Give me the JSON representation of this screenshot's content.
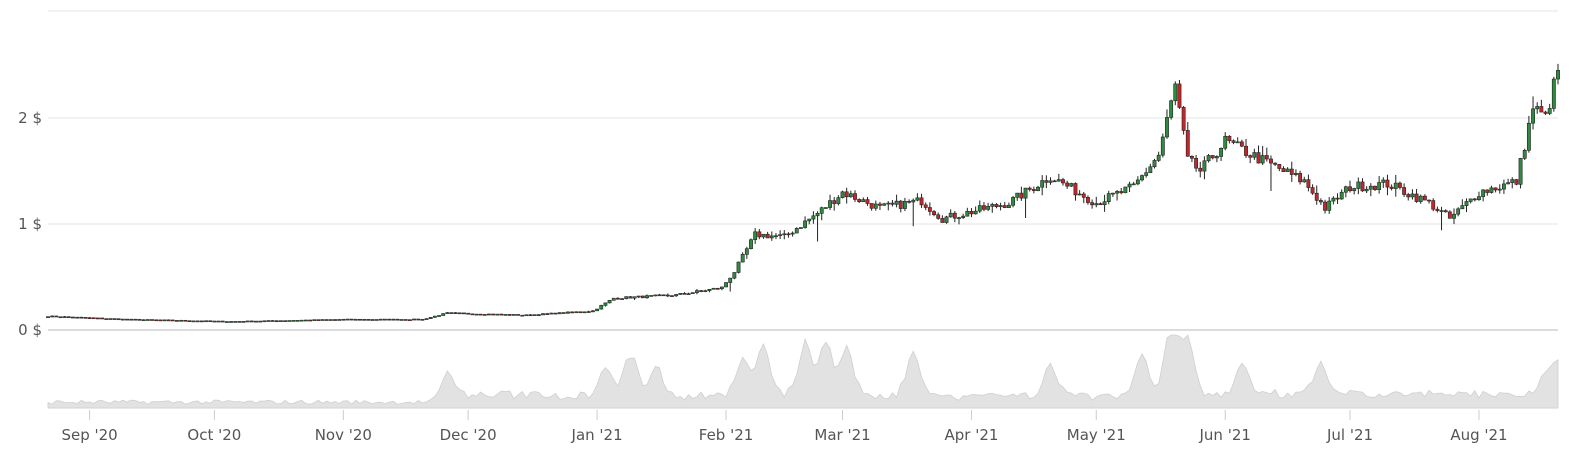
{
  "chart_data": {
    "type": "candlestick",
    "price_axis": {
      "unit": "$",
      "ticks": [
        {
          "value": 0,
          "label": "0 $"
        },
        {
          "value": 1,
          "label": "1 $"
        },
        {
          "value": 2,
          "label": "2 $"
        }
      ],
      "range": [
        0,
        3
      ]
    },
    "x_axis": {
      "ticks": [
        "Sep '20",
        "Oct '20",
        "Nov '20",
        "Dec '20",
        "Jan '21",
        "Feb '21",
        "Mar '21",
        "Apr '21",
        "May '21",
        "Jun '21",
        "Jul '21",
        "Aug '21"
      ],
      "range": [
        "2020-08-22",
        "2021-08-20"
      ]
    },
    "grid": true,
    "colors": {
      "up": "#2e8b3f",
      "down": "#c0282e",
      "wick": "#222222",
      "volume": "#e2e2e2",
      "grid": "#e6e6e6"
    },
    "price_keypoints": [
      [
        "2020-08-22",
        0.13
      ],
      [
        "2020-09-10",
        0.1
      ],
      [
        "2020-10-05",
        0.08
      ],
      [
        "2020-11-01",
        0.1
      ],
      [
        "2020-11-20",
        0.1
      ],
      [
        "2020-11-26",
        0.16
      ],
      [
        "2020-12-15",
        0.14
      ],
      [
        "2020-12-31",
        0.18
      ],
      [
        "2021-01-05",
        0.3
      ],
      [
        "2021-01-20",
        0.33
      ],
      [
        "2021-01-31",
        0.4
      ],
      [
        "2021-02-03",
        0.55
      ],
      [
        "2021-02-08",
        0.9
      ],
      [
        "2021-02-15",
        0.88
      ],
      [
        "2021-02-23",
        1.1
      ],
      [
        "2021-03-01",
        1.3
      ],
      [
        "2021-03-10",
        1.15
      ],
      [
        "2021-03-20",
        1.22
      ],
      [
        "2021-03-25",
        1.05
      ],
      [
        "2021-04-10",
        1.2
      ],
      [
        "2021-04-20",
        1.45
      ],
      [
        "2021-05-01",
        1.2
      ],
      [
        "2021-05-10",
        1.35
      ],
      [
        "2021-05-16",
        1.65
      ],
      [
        "2021-05-20",
        2.3
      ],
      [
        "2021-05-23",
        1.6
      ],
      [
        "2021-05-26",
        1.5
      ],
      [
        "2021-06-01",
        1.78
      ],
      [
        "2021-06-10",
        1.6
      ],
      [
        "2021-06-20",
        1.4
      ],
      [
        "2021-06-25",
        1.15
      ],
      [
        "2021-07-01",
        1.35
      ],
      [
        "2021-07-10",
        1.38
      ],
      [
        "2021-07-20",
        1.2
      ],
      [
        "2021-07-25",
        1.05
      ],
      [
        "2021-08-01",
        1.3
      ],
      [
        "2021-08-10",
        1.4
      ],
      [
        "2021-08-14",
        2.1
      ],
      [
        "2021-08-17",
        2.0
      ],
      [
        "2021-08-20",
        2.45
      ]
    ],
    "volume_peaks": [
      [
        "2020-11-26",
        0.35
      ],
      [
        "2021-01-03",
        0.4
      ],
      [
        "2021-01-09",
        0.55
      ],
      [
        "2021-01-15",
        0.4
      ],
      [
        "2021-02-05",
        0.5
      ],
      [
        "2021-02-10",
        0.65
      ],
      [
        "2021-02-20",
        0.7
      ],
      [
        "2021-02-25",
        0.75
      ],
      [
        "2021-03-02",
        0.6
      ],
      [
        "2021-03-18",
        0.6
      ],
      [
        "2021-04-20",
        0.4
      ],
      [
        "2021-05-12",
        0.55
      ],
      [
        "2021-05-19",
        1.0
      ],
      [
        "2021-05-23",
        0.75
      ],
      [
        "2021-06-05",
        0.4
      ],
      [
        "2021-06-24",
        0.45
      ],
      [
        "2021-08-17",
        0.3
      ],
      [
        "2021-08-20",
        0.4
      ]
    ]
  }
}
